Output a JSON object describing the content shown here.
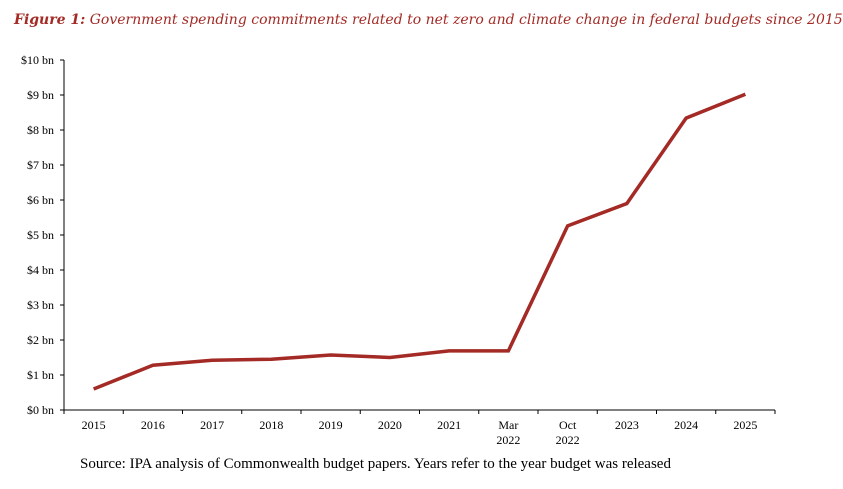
{
  "figure": {
    "title_label": "Figure 1:",
    "title_text": "Government spending commitments related to net zero and climate change in federal budgets since 2015",
    "source": "Source: IPA analysis of Commonwealth budget papers. Years refer to the year budget was released"
  },
  "chart_data": {
    "type": "line",
    "categories": [
      [
        "2015"
      ],
      [
        "2016"
      ],
      [
        "2017"
      ],
      [
        "2018"
      ],
      [
        "2019"
      ],
      [
        "2020"
      ],
      [
        "2021"
      ],
      [
        "Mar",
        "2022"
      ],
      [
        "Oct",
        "2022"
      ],
      [
        "2023"
      ],
      [
        "2024"
      ],
      [
        "2025"
      ]
    ],
    "values": [
      0.6,
      1.28,
      1.42,
      1.45,
      1.57,
      1.5,
      1.69,
      1.69,
      5.26,
      5.9,
      8.34,
      9.02
    ],
    "ylim": [
      0,
      10
    ],
    "yticks": [
      "$0 bn",
      "$1 bn",
      "$2 bn",
      "$3 bn",
      "$4 bn",
      "$5 bn",
      "$6 bn",
      "$7 bn",
      "$8 bn",
      "$9 bn",
      "$10 bn"
    ],
    "grid": false,
    "line_color": "#A32A25"
  }
}
